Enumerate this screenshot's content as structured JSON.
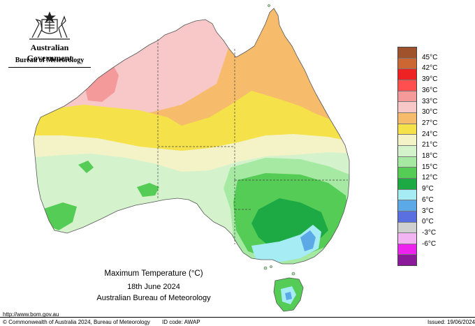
{
  "government": {
    "title": "Australian Government",
    "agency": "Bureau of Meteorology"
  },
  "map": {
    "title": "Maximum Temperature (°C)",
    "date": "18th June 2024",
    "organisation": "Australian Bureau of Meteorology"
  },
  "legend": {
    "items": [
      {
        "label": "45°C",
        "color": "#a0522d"
      },
      {
        "label": "42°C",
        "color": "#cc6633"
      },
      {
        "label": "39°C",
        "color": "#ee2222"
      },
      {
        "label": "36°C",
        "color": "#ff4f4f"
      },
      {
        "label": "33°C",
        "color": "#f49a9a"
      },
      {
        "label": "30°C",
        "color": "#f8c8c8"
      },
      {
        "label": "27°C",
        "color": "#f6bb6b"
      },
      {
        "label": "24°C",
        "color": "#f5e24a"
      },
      {
        "label": "21°C",
        "color": "#f4f3c8"
      },
      {
        "label": "18°C",
        "color": "#d4f3cc"
      },
      {
        "label": "15°C",
        "color": "#a5e9a3"
      },
      {
        "label": "12°C",
        "color": "#55cc55"
      },
      {
        "label": "9°C",
        "color": "#1daa45"
      },
      {
        "label": "6°C",
        "color": "#a6ecf4"
      },
      {
        "label": "3°C",
        "color": "#5ca9e8"
      },
      {
        "label": "0°C",
        "color": "#5a6fe0"
      },
      {
        "label": "-3°C",
        "color": "#d0d0d0"
      },
      {
        "label": "-6°C",
        "color": "#f2b4f2"
      }
    ],
    "extra_swatches": [
      "#ee22ee",
      "#8a1a9a"
    ]
  },
  "footer": {
    "url": "http://www.bom.gov.au",
    "copyright": "© Commonwealth of Australia 2024, Bureau of Meteorology",
    "id_code": "ID code: AWAP",
    "issued": "Issued: 19/06/2024"
  }
}
